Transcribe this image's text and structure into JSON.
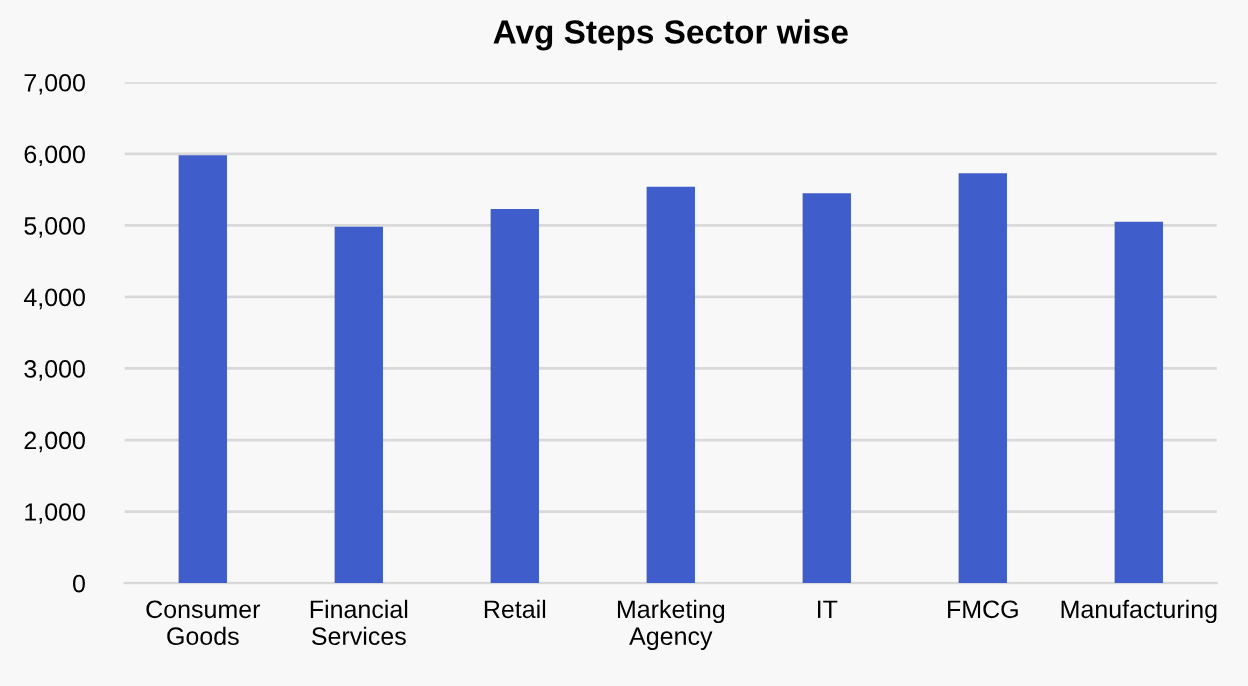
{
  "chart_data": {
    "type": "bar",
    "title": "Avg Steps Sector wise",
    "categories": [
      "Consumer Goods",
      "Financial Services",
      "Retail",
      "Marketing Agency",
      "IT",
      "FMCG",
      "Manufacturing"
    ],
    "values": [
      5980,
      4980,
      5230,
      5540,
      5450,
      5730,
      5050
    ],
    "color": "#3f5ecb",
    "ylim": [
      0,
      7000
    ],
    "yticks": [
      {
        "value": 0,
        "label": "0"
      },
      {
        "value": 1000,
        "label": "1,000"
      },
      {
        "value": 2000,
        "label": "2,000"
      },
      {
        "value": 3000,
        "label": "3,000"
      },
      {
        "value": 4000,
        "label": "4,000"
      },
      {
        "value": 5000,
        "label": "5,000"
      },
      {
        "value": 6000,
        "label": "6,000"
      },
      {
        "value": 7000,
        "label": "7,000"
      }
    ],
    "grid": "y",
    "legend": false
  }
}
